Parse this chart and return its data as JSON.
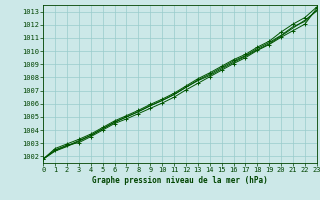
{
  "xlabel": "Graphe pression niveau de la mer (hPa)",
  "xlim": [
    0,
    23
  ],
  "ylim": [
    1001.5,
    1013.5
  ],
  "yticks": [
    1002,
    1003,
    1004,
    1005,
    1006,
    1007,
    1008,
    1009,
    1010,
    1011,
    1012,
    1013
  ],
  "xticks": [
    0,
    1,
    2,
    3,
    4,
    5,
    6,
    7,
    8,
    9,
    10,
    11,
    12,
    13,
    14,
    15,
    16,
    17,
    18,
    19,
    20,
    21,
    22,
    23
  ],
  "background_color": "#cce8e8",
  "grid_color": "#99cccc",
  "line_color": "#005500",
  "marker_color": "#005500",
  "line_width": 0.7,
  "series": [
    [
      1001.8,
      1002.5,
      1002.85,
      1003.05,
      1003.5,
      1004.0,
      1004.5,
      1004.85,
      1005.25,
      1005.65,
      1006.05,
      1006.5,
      1007.05,
      1007.55,
      1008.05,
      1008.55,
      1009.05,
      1009.5,
      1010.05,
      1010.5,
      1011.05,
      1011.55,
      1012.05,
      1013.25
    ],
    [
      1001.8,
      1002.4,
      1002.75,
      1003.15,
      1003.6,
      1004.1,
      1004.6,
      1005.0,
      1005.4,
      1005.85,
      1006.25,
      1006.7,
      1007.25,
      1007.8,
      1008.25,
      1008.75,
      1009.25,
      1009.65,
      1010.2,
      1010.65,
      1011.2,
      1011.85,
      1012.25,
      1013.1
    ],
    [
      1001.8,
      1002.6,
      1002.95,
      1003.3,
      1003.7,
      1004.2,
      1004.7,
      1005.1,
      1005.5,
      1005.95,
      1006.35,
      1006.8,
      1007.35,
      1007.9,
      1008.35,
      1008.85,
      1009.35,
      1009.75,
      1010.3,
      1010.75,
      1011.45,
      1012.05,
      1012.55,
      1013.35
    ],
    [
      1001.8,
      1002.45,
      1002.8,
      1003.2,
      1003.6,
      1004.1,
      1004.6,
      1005.0,
      1005.4,
      1005.85,
      1006.25,
      1006.7,
      1007.25,
      1007.75,
      1008.15,
      1008.65,
      1009.15,
      1009.6,
      1010.1,
      1010.55,
      1011.15,
      1011.75,
      1012.35,
      1013.05
    ]
  ],
  "marker_series": [
    0,
    2
  ],
  "font_family": "monospace",
  "tick_fontsize": 5.0,
  "xlabel_fontsize": 5.5
}
